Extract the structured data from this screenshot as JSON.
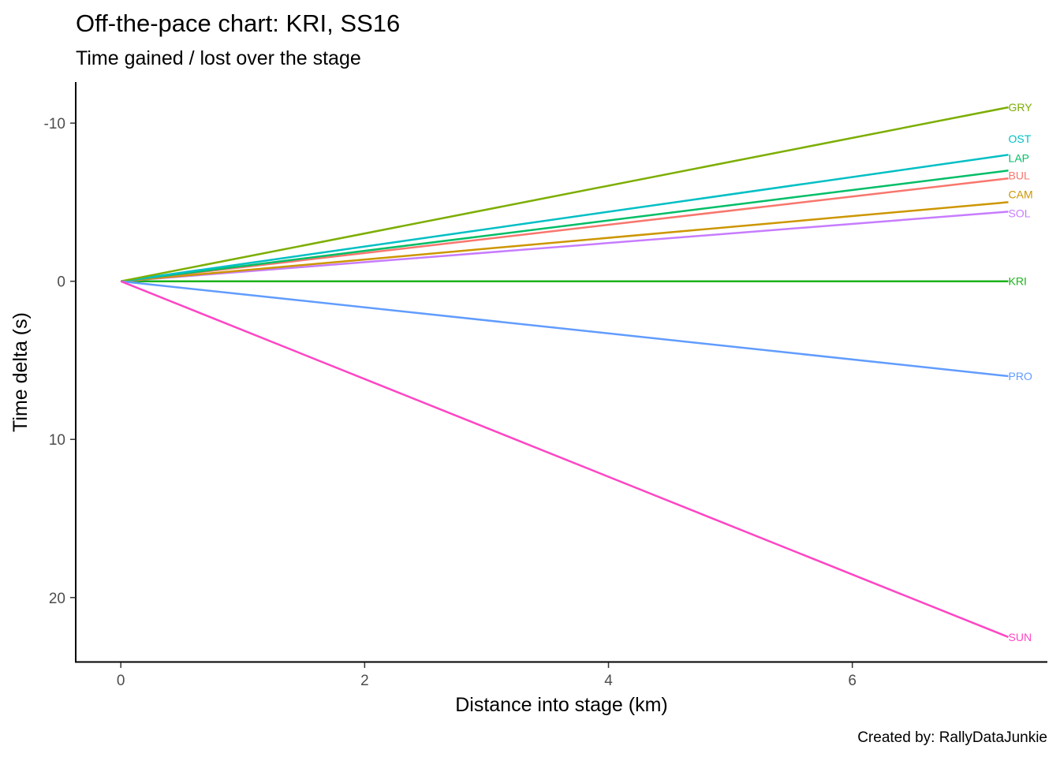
{
  "chart_data": {
    "type": "line",
    "title": "Off-the-pace chart: KRI, SS16",
    "subtitle": "Time gained / lost over the stage",
    "xlabel": "Distance into stage (km)",
    "ylabel": "Time delta (s)",
    "caption": "Created by: RallyDataJunkie",
    "xlim": [
      -0.37,
      7.6
    ],
    "ylim": [
      24.1,
      -12.6
    ],
    "y_reversed": true,
    "x_ticks": [
      0,
      2,
      4,
      6
    ],
    "y_ticks": [
      -10,
      0,
      10,
      20
    ],
    "x_tick_labels": [
      "0",
      "2",
      "4",
      "6"
    ],
    "y_tick_labels": [
      "-10",
      "0",
      "10",
      "20"
    ],
    "grid": false,
    "legend": "none",
    "series": [
      {
        "name": "GRY",
        "color": "#7CAE00",
        "x": [
          0,
          7.28
        ],
        "y": [
          0,
          -11.0
        ]
      },
      {
        "name": "OST",
        "color": "#00BFC4",
        "x": [
          0,
          7.28
        ],
        "y": [
          0,
          -8.0
        ]
      },
      {
        "name": "LAP",
        "color": "#00BE67",
        "x": [
          0,
          7.28
        ],
        "y": [
          0,
          -7.0
        ]
      },
      {
        "name": "BUL",
        "color": "#F8766D",
        "x": [
          0,
          7.28
        ],
        "y": [
          0,
          -6.5
        ]
      },
      {
        "name": "CAM",
        "color": "#CD9600",
        "x": [
          0,
          7.28
        ],
        "y": [
          0,
          -5.0
        ]
      },
      {
        "name": "SOL",
        "color": "#C77CFF",
        "x": [
          0,
          7.28
        ],
        "y": [
          0,
          -4.4
        ]
      },
      {
        "name": "KRI",
        "color": "#1BB31B",
        "x": [
          0,
          7.28
        ],
        "y": [
          0,
          0
        ]
      },
      {
        "name": "PRO",
        "color": "#619CFF",
        "x": [
          0,
          7.28
        ],
        "y": [
          0,
          6.0
        ]
      },
      {
        "name": "SUN",
        "color": "#FF45C4",
        "x": [
          0,
          7.28
        ],
        "y": [
          0,
          22.5
        ]
      }
    ],
    "label_y": {
      "GRY": -11.0,
      "OST": -9.0,
      "LAP": -7.8,
      "BUL": -6.7,
      "CAM": -5.5,
      "SOL": -4.3,
      "KRI": 0,
      "PRO": 6.0,
      "SUN": 22.5
    },
    "line_draw_order": [
      "KRI",
      "SOL",
      "CAM",
      "BUL",
      "LAP",
      "OST",
      "GRY",
      "PRO",
      "SUN"
    ]
  }
}
